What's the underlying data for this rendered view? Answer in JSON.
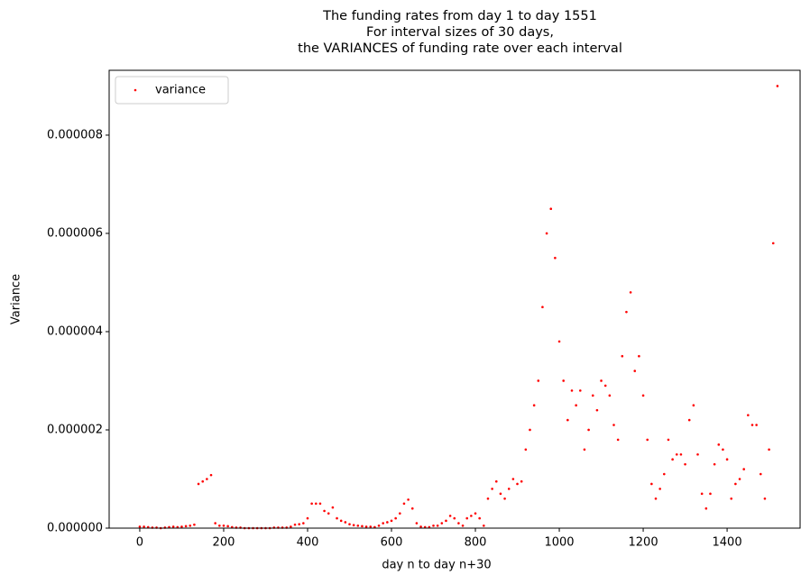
{
  "chart_data": {
    "type": "scatter",
    "title": "The funding rates from day 1 to day 1551\nFor interval sizes of 30 days,\nthe VARIANCES of funding rate over each interval",
    "x_label": "day n to day n+30",
    "y_label": "Variance",
    "xlim": [
      -73,
      1574
    ],
    "ylim": [
      0,
      9.32e-06
    ],
    "xticks": [
      0,
      200,
      400,
      600,
      800,
      1000,
      1200,
      1400
    ],
    "yticks": [
      {
        "value": 0,
        "label": "0.000000"
      },
      {
        "value": 2e-06,
        "label": "0.000002"
      },
      {
        "value": 4e-06,
        "label": "0.000004"
      },
      {
        "value": 6e-06,
        "label": "0.000006"
      },
      {
        "value": 8e-06,
        "label": "0.000008"
      }
    ],
    "legend": "upper left",
    "series": [
      {
        "name": "variance",
        "color": "#ff0000",
        "x": [
          0,
          10,
          20,
          30,
          40,
          50,
          60,
          70,
          80,
          90,
          100,
          110,
          120,
          130,
          140,
          150,
          160,
          170,
          180,
          190,
          200,
          210,
          220,
          230,
          240,
          250,
          260,
          270,
          280,
          290,
          300,
          310,
          320,
          330,
          340,
          350,
          360,
          370,
          380,
          390,
          400,
          410,
          420,
          430,
          440,
          450,
          460,
          470,
          480,
          490,
          500,
          510,
          520,
          530,
          540,
          550,
          560,
          570,
          580,
          590,
          600,
          610,
          620,
          630,
          640,
          650,
          660,
          670,
          680,
          690,
          700,
          710,
          720,
          730,
          740,
          750,
          760,
          770,
          780,
          790,
          800,
          810,
          820,
          830,
          840,
          850,
          860,
          870,
          880,
          890,
          900,
          910,
          920,
          930,
          940,
          950,
          960,
          970,
          980,
          990,
          1000,
          1010,
          1020,
          1030,
          1040,
          1050,
          1060,
          1070,
          1080,
          1090,
          1100,
          1110,
          1120,
          1130,
          1140,
          1150,
          1160,
          1170,
          1180,
          1190,
          1200,
          1210,
          1220,
          1230,
          1240,
          1250,
          1260,
          1270,
          1280,
          1290,
          1300,
          1310,
          1320,
          1330,
          1340,
          1350,
          1360,
          1370,
          1380,
          1390,
          1400,
          1410,
          1420,
          1430,
          1440,
          1450,
          1460,
          1470,
          1480,
          1490,
          1500,
          1510,
          1520
        ],
        "values": [
          3e-08,
          3e-08,
          2e-08,
          1e-08,
          1e-08,
          0,
          1e-08,
          2e-08,
          3e-08,
          2e-08,
          3e-08,
          4e-08,
          5e-08,
          7e-08,
          9e-07,
          9.5e-07,
          1e-06,
          1.08e-06,
          1e-07,
          5e-08,
          5e-08,
          4e-08,
          2e-08,
          1e-08,
          1e-08,
          0,
          0,
          0,
          0,
          0,
          0,
          0,
          1e-08,
          1e-08,
          1e-08,
          1e-08,
          3e-08,
          7e-08,
          8e-08,
          1e-07,
          2e-07,
          5e-07,
          5e-07,
          5e-07,
          3.5e-07,
          3e-07,
          4.2e-07,
          2e-07,
          1.5e-07,
          1.2e-07,
          8e-08,
          6e-08,
          5e-08,
          4e-08,
          3e-08,
          3e-08,
          2e-08,
          5e-08,
          1e-07,
          1.2e-07,
          1.5e-07,
          2e-07,
          3e-07,
          5e-07,
          5.8e-07,
          4e-07,
          1e-07,
          3e-08,
          2e-08,
          2e-08,
          5e-08,
          5e-08,
          1e-07,
          1.5e-07,
          2.5e-07,
          2e-07,
          1e-07,
          5e-08,
          2e-07,
          2.5e-07,
          3e-07,
          2e-07,
          5e-08,
          6e-07,
          8e-07,
          9.5e-07,
          7e-07,
          6e-07,
          8e-07,
          1e-06,
          9e-07,
          9.5e-07,
          1.6e-06,
          2e-06,
          2.5e-06,
          3e-06,
          4.5e-06,
          6e-06,
          6.5e-06,
          5.5e-06,
          3.8e-06,
          3e-06,
          2.2e-06,
          2.8e-06,
          2.5e-06,
          2.8e-06,
          1.6e-06,
          2e-06,
          2.7e-06,
          2.4e-06,
          3e-06,
          2.9e-06,
          2.7e-06,
          2.1e-06,
          1.8e-06,
          3.5e-06,
          4.4e-06,
          4.8e-06,
          3.2e-06,
          3.5e-06,
          2.7e-06,
          1.8e-06,
          9e-07,
          6e-07,
          8e-07,
          1.1e-06,
          1.8e-06,
          1.4e-06,
          1.5e-06,
          1.5e-06,
          1.3e-06,
          2.2e-06,
          2.5e-06,
          1.5e-06,
          7e-07,
          4e-07,
          7e-07,
          1.3e-06,
          1.7e-06,
          1.6e-06,
          1.4e-06,
          6e-07,
          9e-07,
          1e-06,
          1.2e-06,
          2.3e-06,
          2.1e-06,
          2.1e-06,
          1.1e-06,
          6e-07,
          1.6e-06,
          5.8e-06,
          9e-06
        ]
      }
    ]
  }
}
